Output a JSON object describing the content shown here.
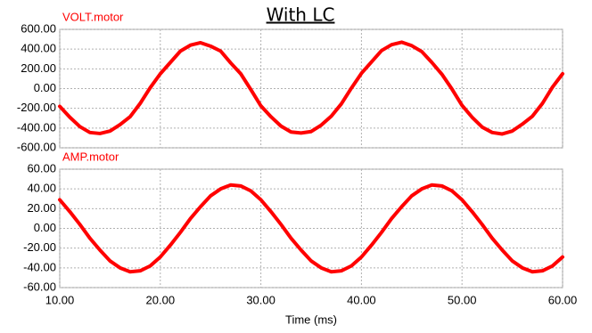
{
  "chart_data": [
    {
      "type": "line",
      "title": "With LC",
      "x": [
        10,
        11,
        12,
        13,
        14,
        15,
        16,
        17,
        18,
        19,
        20,
        21,
        22,
        23,
        24,
        25,
        26,
        27,
        28,
        29,
        30,
        31,
        32,
        33,
        34,
        35,
        36,
        37,
        38,
        39,
        40,
        41,
        42,
        43,
        44,
        45,
        46,
        47,
        48,
        49,
        50,
        51,
        52,
        53,
        54,
        55,
        56,
        57,
        58,
        59,
        60
      ],
      "series": [
        {
          "name": "VOLT.motor",
          "color": "#ff0000",
          "values": [
            -180,
            -290,
            -385,
            -445,
            -455,
            -430,
            -365,
            -285,
            -150,
            10,
            150,
            265,
            380,
            440,
            465,
            430,
            380,
            260,
            150,
            -10,
            -175,
            -285,
            -380,
            -440,
            -450,
            -435,
            -370,
            -280,
            -155,
            5,
            155,
            270,
            385,
            445,
            470,
            435,
            375,
            265,
            145,
            -5,
            -170,
            -290,
            -390,
            -445,
            -460,
            -430,
            -360,
            -280,
            -150,
            15,
            150
          ]
        }
      ],
      "xlim": [
        10,
        60
      ],
      "xticks": [
        10,
        20,
        30,
        40,
        50,
        60
      ],
      "ylim": [
        -600,
        600
      ],
      "yticks": [
        {
          "value": -600,
          "label": "-600.00"
        },
        {
          "value": -400,
          "label": "-400.00"
        },
        {
          "value": -200,
          "label": "-200.00"
        },
        {
          "value": 0,
          "label": "0.00"
        },
        {
          "value": 200,
          "label": "200.00"
        },
        {
          "value": 400,
          "label": "400.00"
        },
        {
          "value": 600,
          "label": "600.00"
        }
      ],
      "grid": true
    },
    {
      "type": "line",
      "xlabel": "Time (ms)",
      "x": [
        10,
        11,
        12,
        13,
        14,
        15,
        16,
        17,
        18,
        19,
        20,
        21,
        22,
        23,
        24,
        25,
        26,
        27,
        28,
        29,
        30,
        31,
        32,
        33,
        34,
        35,
        36,
        37,
        38,
        39,
        40,
        41,
        42,
        43,
        44,
        45,
        46,
        47,
        48,
        49,
        50,
        51,
        52,
        53,
        54,
        55,
        56,
        57,
        58,
        59,
        60
      ],
      "series": [
        {
          "name": "AMP.motor",
          "color": "#ff0000",
          "values": [
            29,
            17,
            4,
            -10,
            -22,
            -33,
            -40,
            -44,
            -43,
            -38,
            -29,
            -17,
            -4,
            10,
            22,
            33,
            40,
            44,
            43,
            38,
            29,
            17,
            4,
            -10,
            -22,
            -33,
            -40,
            -44,
            -43,
            -38,
            -29,
            -17,
            -4,
            10,
            22,
            33,
            40,
            44,
            43,
            38,
            29,
            17,
            4,
            -10,
            -22,
            -33,
            -40,
            -44,
            -43,
            -38,
            -29
          ]
        }
      ],
      "xlim": [
        10,
        60
      ],
      "xticks": [
        {
          "value": 10,
          "label": "10.00"
        },
        {
          "value": 20,
          "label": "20.00"
        },
        {
          "value": 30,
          "label": "30.00"
        },
        {
          "value": 40,
          "label": "40.00"
        },
        {
          "value": 50,
          "label": "50.00"
        },
        {
          "value": 60,
          "label": "60.00"
        }
      ],
      "ylim": [
        -60,
        60
      ],
      "yticks": [
        {
          "value": -60,
          "label": "-60.00"
        },
        {
          "value": -40,
          "label": "-40.00"
        },
        {
          "value": -20,
          "label": "-20.00"
        },
        {
          "value": 0,
          "label": "0.00"
        },
        {
          "value": 20,
          "label": "20.00"
        },
        {
          "value": 40,
          "label": "40.00"
        },
        {
          "value": 60,
          "label": "60.00"
        }
      ],
      "grid": true
    }
  ]
}
